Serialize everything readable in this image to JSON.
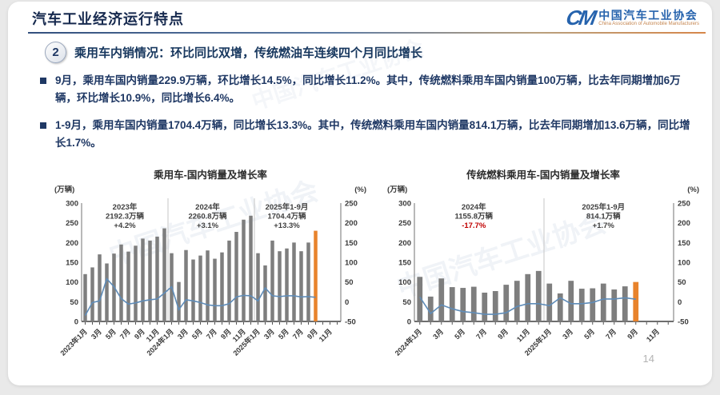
{
  "header": {
    "title": "汽车工业经济运行特点",
    "logo_mark": "CM",
    "logo_text": "中国汽车工业协会",
    "logo_subtext": "China Association of Automobile Manufacturers"
  },
  "section": {
    "number": "2",
    "title": "乘用车内销情况：环比同比双增，传统燃油车连续四个月同比增长"
  },
  "bullets": [
    {
      "text": "9月，乘用车国内销量229.9万辆，环比增长14.5%，同比增长11.2%。其中，传统燃料乘用车国内销量100万辆，比去年同期增加6万辆，环比增长10.9%，同比增长6.4%。"
    },
    {
      "text": "1-9月，乘用车国内销量1704.4万辆，同比增长13.3%。其中，传统燃料乘用车国内销量814.1万辆，比去年同期增加13.6万辆，同比增长1.7%。"
    }
  ],
  "watermark_text": "中国汽车工业协会",
  "page_number": "14",
  "chart_data": [
    {
      "type": "bar",
      "title": "乘用车-国内销量及增长率",
      "left_unit": "(万辆)",
      "right_unit": "(%)",
      "left_range": [
        0,
        300
      ],
      "right_range": [
        -50,
        250
      ],
      "left_ticks": [
        300,
        250,
        200,
        150,
        100,
        50,
        0
      ],
      "right_ticks": [
        250,
        200,
        150,
        100,
        50,
        0,
        -50
      ],
      "total_slots": 36,
      "x_tick_labels": [
        "2023年1月",
        "3月",
        "5月",
        "7月",
        "9月",
        "11月",
        "2024年1月",
        "3月",
        "5月",
        "7月",
        "9月",
        "11月",
        "2025年1月",
        "3月",
        "5月",
        "7月",
        "9月",
        "11月"
      ],
      "year_dividers": [
        12,
        24
      ],
      "bar_series_name": "国内销量(万辆)",
      "line_series_name": "同比增长率(%)",
      "highlight_last": true,
      "colors": {
        "bar": "#7E7E7E",
        "highlight": "#E8832C",
        "line": "#5F8CB8"
      },
      "bars": [
        120,
        137,
        170,
        147,
        172,
        195,
        177,
        192,
        210,
        205,
        215,
        236,
        173,
        100,
        181,
        157,
        167,
        180,
        159,
        175,
        205,
        227,
        258,
        268,
        173,
        142,
        205,
        178,
        185,
        200,
        178,
        200,
        229.9
      ],
      "line": [
        -35,
        -2,
        2,
        58,
        38,
        8,
        -6,
        -3,
        2,
        5,
        7,
        22,
        38,
        -20,
        5,
        2,
        -2,
        -8,
        -10,
        -10,
        -5,
        12,
        16,
        15,
        2,
        35,
        15,
        13,
        15,
        15,
        12,
        13,
        11.2
      ],
      "annotations": [
        {
          "slot_center": 6,
          "lines": [
            "2023年",
            "2192.3万辆",
            "+4.2%"
          ]
        },
        {
          "slot_center": 17.5,
          "lines": [
            "2024年",
            "2260.8万辆",
            "+3.1%"
          ]
        },
        {
          "slot_center": 28.5,
          "lines": [
            "2025年1-9月",
            "1704.4万辆",
            "+13.3%"
          ]
        }
      ]
    },
    {
      "type": "bar",
      "title": "传统燃料乘用车-国内销量及增长率",
      "left_unit": "(万辆)",
      "right_unit": "(%)",
      "left_range": [
        0,
        300
      ],
      "right_range": [
        -50,
        250
      ],
      "left_ticks": [
        300,
        250,
        200,
        150,
        100,
        50,
        0
      ],
      "right_ticks": [
        250,
        200,
        150,
        100,
        50,
        0,
        -50
      ],
      "total_slots": 24,
      "x_tick_labels": [
        "2024年1月",
        "3月",
        "5月",
        "7月",
        "9月",
        "11月",
        "2025年1月",
        "3月",
        "5月",
        "7月",
        "9月",
        "11月"
      ],
      "year_dividers": [
        12
      ],
      "bar_series_name": "国内销量(万辆)",
      "line_series_name": "同比增长率(%)",
      "highlight_last": true,
      "colors": {
        "bar": "#7E7E7E",
        "highlight": "#E8832C",
        "line": "#5F8CB8"
      },
      "bars": [
        113,
        63,
        109,
        87,
        85,
        88,
        73,
        77,
        93,
        103,
        120,
        128,
        96,
        71,
        103,
        83,
        84,
        96,
        81,
        89,
        100
      ],
      "line": [
        12,
        -30,
        -8,
        -18,
        -25,
        -28,
        -32,
        -32,
        -28,
        -12,
        -5,
        -5,
        -10,
        10,
        -5,
        -5,
        -2,
        7,
        7,
        10,
        6.4
      ],
      "annotations": [
        {
          "slot_center": 5.5,
          "lines": [
            "2024年",
            "1155.8万辆",
            "-17.7%"
          ],
          "line_colors": [
            null,
            null,
            "#C00000"
          ]
        },
        {
          "slot_center": 17.5,
          "lines": [
            "2025年1-9月",
            "814.1万辆",
            "+1.7%"
          ]
        }
      ]
    }
  ]
}
